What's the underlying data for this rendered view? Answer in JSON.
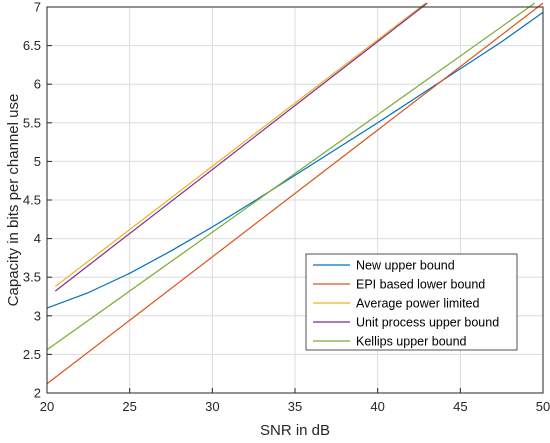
{
  "chart_data": {
    "type": "line",
    "title": "",
    "xlabel": "SNR in dB",
    "ylabel": "Capacity in bits per channel use",
    "xlim": [
      20,
      50
    ],
    "ylim": [
      2,
      7
    ],
    "xticks": [
      20,
      25,
      30,
      35,
      40,
      45,
      50
    ],
    "yticks": [
      2,
      2.5,
      3,
      3.5,
      4,
      4.5,
      5,
      5.5,
      6,
      6.5,
      7
    ],
    "grid": true,
    "legend_position": "lower-right",
    "series": [
      {
        "name": "New upper bound",
        "color": "#0072BD",
        "x": [
          20,
          22.5,
          25,
          27.5,
          30,
          32.5,
          35,
          37.5,
          40,
          42.5,
          45,
          47.5,
          50
        ],
        "y": [
          3.1,
          3.3,
          3.55,
          3.84,
          4.15,
          4.48,
          4.82,
          5.16,
          5.5,
          5.85,
          6.2,
          6.55,
          6.93
        ]
      },
      {
        "name": "EPI based lower bound",
        "color": "#D95319",
        "x": [
          20,
          50
        ],
        "y": [
          2.12,
          7.05
        ]
      },
      {
        "name": "Average power limited",
        "color": "#EDB120",
        "x": [
          20.5,
          42.9
        ],
        "y": [
          3.38,
          7.05
        ]
      },
      {
        "name": "Unit process upper bound",
        "color": "#7E2F8E",
        "x": [
          20.5,
          43.0
        ],
        "y": [
          3.32,
          7.05
        ]
      },
      {
        "name": "Kellips upper bound",
        "color": "#77AC30",
        "x": [
          20,
          49.5
        ],
        "y": [
          2.56,
          7.05
        ]
      }
    ]
  }
}
